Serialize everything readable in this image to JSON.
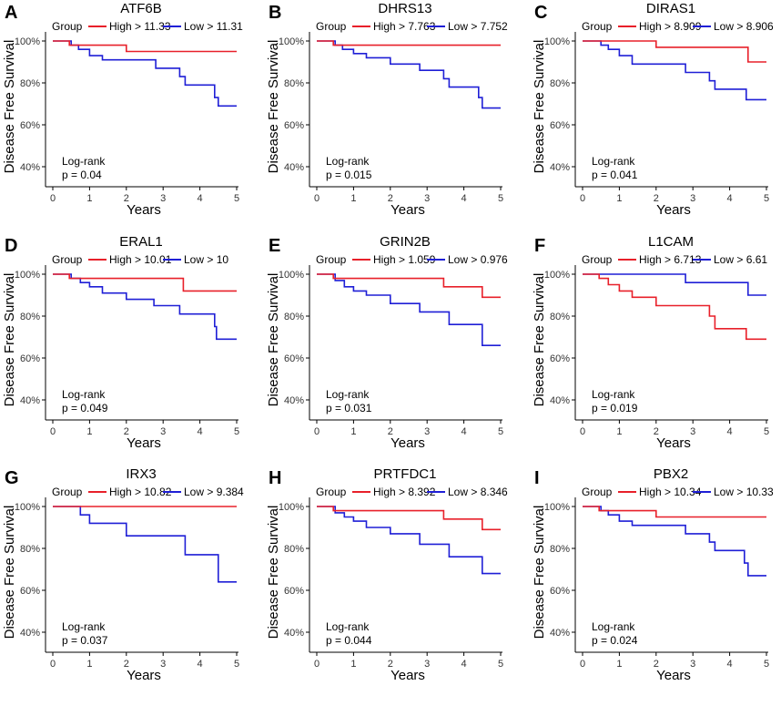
{
  "figure": {
    "colors": {
      "high": "#e8202a",
      "low": "#1f1fd6",
      "axis": "#000000"
    },
    "legend_title": "Group",
    "y_axis_label": "Disease Free Survival",
    "x_axis_label": "Years",
    "y_tick_labels": [
      "40%",
      "60%",
      "80%",
      "100%"
    ],
    "x_tick_labels": [
      "0",
      "1",
      "2",
      "3",
      "4",
      "5"
    ],
    "stat_label": "Log-rank"
  },
  "chart_data": [
    {
      "panel": "A",
      "type": "line",
      "title": "ATF6B",
      "xlabel": "Years",
      "ylabel": "Disease Free Survival",
      "xlim": [
        0,
        5
      ],
      "ylim": [
        30,
        100
      ],
      "series": [
        {
          "name": "High > 11.33",
          "group": "high",
          "x": [
            0,
            0.45,
            0.45,
            2.0,
            2.0,
            5.0
          ],
          "y": [
            100,
            100,
            98,
            98,
            95,
            95
          ]
        },
        {
          "name": "Low > 11.31",
          "group": "low",
          "x": [
            0,
            0.5,
            0.5,
            0.7,
            0.7,
            1.0,
            1.0,
            1.35,
            1.35,
            2.8,
            2.8,
            3.45,
            3.45,
            3.6,
            3.6,
            4.4,
            4.4,
            4.5,
            4.5,
            5.0
          ],
          "y": [
            100,
            100,
            98,
            98,
            96,
            96,
            93,
            93,
            91,
            91,
            87,
            87,
            83,
            83,
            79,
            79,
            73,
            73,
            69,
            69
          ]
        }
      ],
      "stat": "p = 0.04"
    },
    {
      "panel": "B",
      "type": "line",
      "title": "DHRS13",
      "xlabel": "Years",
      "ylabel": "Disease Free Survival",
      "xlim": [
        0,
        5
      ],
      "ylim": [
        30,
        100
      ],
      "series": [
        {
          "name": "High > 7.763",
          "group": "high",
          "x": [
            0,
            0.45,
            0.45,
            5.0
          ],
          "y": [
            100,
            100,
            98,
            98
          ]
        },
        {
          "name": "Low > 7.752",
          "group": "low",
          "x": [
            0,
            0.5,
            0.5,
            0.7,
            0.7,
            1.0,
            1.0,
            1.35,
            1.35,
            2.0,
            2.0,
            2.8,
            2.8,
            3.45,
            3.45,
            3.6,
            3.6,
            4.4,
            4.4,
            4.5,
            4.5,
            5.0
          ],
          "y": [
            100,
            100,
            98,
            98,
            96,
            96,
            94,
            94,
            92,
            92,
            89,
            89,
            86,
            86,
            82,
            82,
            78,
            78,
            73,
            73,
            68,
            68
          ]
        }
      ],
      "stat": "p = 0.015"
    },
    {
      "panel": "C",
      "type": "line",
      "title": "DIRAS1",
      "xlabel": "Years",
      "ylabel": "Disease Free Survival",
      "xlim": [
        0,
        5
      ],
      "ylim": [
        30,
        100
      ],
      "series": [
        {
          "name": "High > 8.909",
          "group": "high",
          "x": [
            0,
            2.0,
            2.0,
            4.5,
            4.5,
            5.0
          ],
          "y": [
            100,
            100,
            97,
            97,
            90,
            90
          ]
        },
        {
          "name": "Low > 8.906",
          "group": "low",
          "x": [
            0,
            0.5,
            0.5,
            0.7,
            0.7,
            1.0,
            1.0,
            1.35,
            1.35,
            2.8,
            2.8,
            3.45,
            3.45,
            3.6,
            3.6,
            4.45,
            4.45,
            5.0
          ],
          "y": [
            100,
            100,
            98,
            98,
            96,
            96,
            93,
            93,
            89,
            89,
            85,
            85,
            81,
            81,
            77,
            77,
            72,
            72
          ]
        }
      ],
      "stat": "p = 0.041"
    },
    {
      "panel": "D",
      "type": "line",
      "title": "ERAL1",
      "xlabel": "Years",
      "ylabel": "Disease Free Survival",
      "xlim": [
        0,
        5
      ],
      "ylim": [
        30,
        100
      ],
      "series": [
        {
          "name": "High > 10.01",
          "group": "high",
          "x": [
            0,
            0.45,
            0.45,
            3.55,
            3.55,
            5.0
          ],
          "y": [
            100,
            100,
            98,
            98,
            92,
            92
          ]
        },
        {
          "name": "Low > 10",
          "group": "low",
          "x": [
            0,
            0.5,
            0.5,
            0.75,
            0.75,
            1.0,
            1.0,
            1.35,
            1.35,
            2.0,
            2.0,
            2.75,
            2.75,
            3.45,
            3.45,
            4.4,
            4.4,
            4.45,
            4.45,
            5.0
          ],
          "y": [
            100,
            100,
            98,
            98,
            96,
            96,
            94,
            94,
            91,
            91,
            88,
            88,
            85,
            85,
            81,
            81,
            75,
            75,
            69,
            69
          ]
        }
      ],
      "stat": "p = 0.049"
    },
    {
      "panel": "E",
      "type": "line",
      "title": "GRIN2B",
      "xlabel": "Years",
      "ylabel": "Disease Free Survival",
      "xlim": [
        0,
        5
      ],
      "ylim": [
        30,
        100
      ],
      "series": [
        {
          "name": "High > 1.059",
          "group": "high",
          "x": [
            0,
            0.45,
            0.45,
            3.45,
            3.45,
            4.5,
            4.5,
            5.0
          ],
          "y": [
            100,
            100,
            98,
            98,
            94,
            94,
            89,
            89
          ]
        },
        {
          "name": "Low > 0.976",
          "group": "low",
          "x": [
            0,
            0.5,
            0.5,
            0.75,
            0.75,
            1.0,
            1.0,
            1.35,
            1.35,
            2.0,
            2.0,
            2.8,
            2.8,
            3.6,
            3.6,
            4.5,
            4.5,
            5.0
          ],
          "y": [
            100,
            100,
            97,
            97,
            94,
            94,
            92,
            92,
            90,
            90,
            86,
            86,
            82,
            82,
            76,
            76,
            66,
            66
          ]
        }
      ],
      "stat": "p = 0.031"
    },
    {
      "panel": "F",
      "type": "line",
      "title": "L1CAM",
      "xlabel": "Years",
      "ylabel": "Disease Free Survival",
      "xlim": [
        0,
        5
      ],
      "ylim": [
        30,
        100
      ],
      "series": [
        {
          "name": "High > 6.713",
          "group": "high",
          "x": [
            0,
            0.45,
            0.45,
            0.7,
            0.7,
            1.0,
            1.0,
            1.35,
            1.35,
            2.0,
            2.0,
            3.45,
            3.45,
            3.6,
            3.6,
            4.45,
            4.45,
            5.0
          ],
          "y": [
            100,
            100,
            98,
            98,
            95,
            95,
            92,
            92,
            89,
            89,
            85,
            85,
            80,
            80,
            74,
            74,
            69,
            69
          ]
        },
        {
          "name": "Low > 6.61",
          "group": "low",
          "x": [
            0,
            2.8,
            2.8,
            4.5,
            4.5,
            5.0
          ],
          "y": [
            100,
            100,
            96,
            96,
            90,
            90
          ]
        }
      ],
      "stat": "p = 0.019"
    },
    {
      "panel": "G",
      "type": "line",
      "title": "IRX3",
      "xlabel": "Years",
      "ylabel": "Disease Free Survival",
      "xlim": [
        0,
        5
      ],
      "ylim": [
        30,
        100
      ],
      "series": [
        {
          "name": "High > 10.82",
          "group": "high",
          "x": [
            0,
            5.0
          ],
          "y": [
            100,
            100
          ]
        },
        {
          "name": "Low > 9.384",
          "group": "low",
          "x": [
            0,
            0.75,
            0.75,
            1.0,
            1.0,
            2.0,
            2.0,
            3.6,
            3.6,
            4.5,
            4.5,
            5.0
          ],
          "y": [
            100,
            100,
            96,
            96,
            92,
            92,
            86,
            86,
            77,
            77,
            64,
            64
          ]
        }
      ],
      "stat": "p = 0.037"
    },
    {
      "panel": "H",
      "type": "line",
      "title": "PRTFDC1",
      "xlabel": "Years",
      "ylabel": "Disease Free Survival",
      "xlim": [
        0,
        5
      ],
      "ylim": [
        30,
        100
      ],
      "series": [
        {
          "name": "High > 8.392",
          "group": "high",
          "x": [
            0,
            0.45,
            0.45,
            3.45,
            3.45,
            4.5,
            4.5,
            5.0
          ],
          "y": [
            100,
            100,
            98,
            98,
            94,
            94,
            89,
            89
          ]
        },
        {
          "name": "Low > 8.346",
          "group": "low",
          "x": [
            0,
            0.5,
            0.5,
            0.75,
            0.75,
            1.0,
            1.0,
            1.35,
            1.35,
            2.0,
            2.0,
            2.8,
            2.8,
            3.6,
            3.6,
            4.5,
            4.5,
            5.0
          ],
          "y": [
            100,
            100,
            97,
            97,
            95,
            95,
            93,
            93,
            90,
            90,
            87,
            87,
            82,
            82,
            76,
            76,
            68,
            68
          ]
        }
      ],
      "stat": "p = 0.044"
    },
    {
      "panel": "I",
      "type": "line",
      "title": "PBX2",
      "xlabel": "Years",
      "ylabel": "Disease Free Survival",
      "xlim": [
        0,
        5
      ],
      "ylim": [
        30,
        100
      ],
      "series": [
        {
          "name": "High > 10.34",
          "group": "high",
          "x": [
            0,
            0.45,
            0.45,
            2.0,
            2.0,
            5.0
          ],
          "y": [
            100,
            100,
            98,
            98,
            95,
            95
          ]
        },
        {
          "name": "Low > 10.33",
          "group": "low",
          "x": [
            0,
            0.5,
            0.5,
            0.7,
            0.7,
            1.0,
            1.0,
            1.35,
            1.35,
            2.8,
            2.8,
            3.45,
            3.45,
            3.6,
            3.6,
            4.4,
            4.4,
            4.5,
            4.5,
            5.0
          ],
          "y": [
            100,
            100,
            98,
            98,
            96,
            96,
            93,
            93,
            91,
            91,
            87,
            87,
            83,
            83,
            79,
            79,
            73,
            73,
            67,
            67
          ]
        }
      ],
      "stat": "p = 0.024"
    }
  ]
}
